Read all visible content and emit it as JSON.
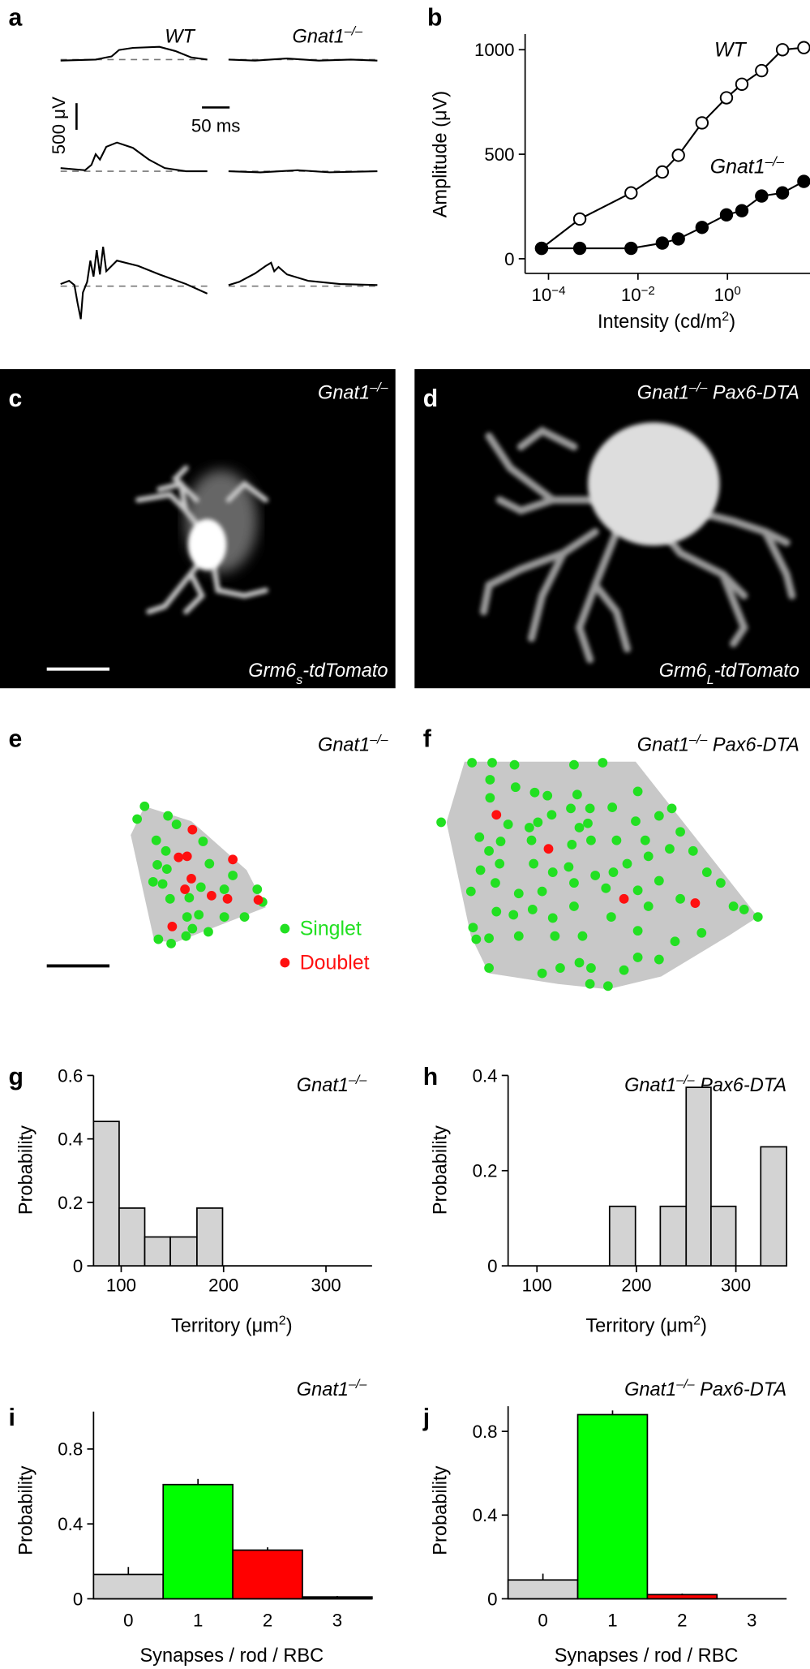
{
  "traces": {
    "label": "a",
    "wt": "WT",
    "mutant": [
      {
        "text": "Gnat1"
      },
      {
        "text": "–/–",
        "style": "sup"
      }
    ],
    "voltage_scale": "500 μV",
    "time_scale": "50 ms"
  },
  "images": [
    {
      "label": "c",
      "genotype": [
        {
          "text": "Gnat1"
        },
        {
          "text": "–/–",
          "style": "sup"
        }
      ],
      "reporter": [
        {
          "text": "Grm6"
        },
        {
          "text": "s",
          "style": "sub"
        },
        {
          "text": "-tdTomato"
        }
      ]
    },
    {
      "label": "d",
      "genotype": [
        {
          "text": "Gnat1"
        },
        {
          "text": "–/–",
          "style": "sup"
        },
        {
          "text": " Pax6-DTA"
        }
      ],
      "reporter": [
        {
          "text": "Grm6"
        },
        {
          "text": "L",
          "style": "sub"
        },
        {
          "text": "-tdTomato"
        }
      ]
    }
  ],
  "territories": [
    {
      "label": "e",
      "genotype": [
        {
          "text": "Gnat1"
        },
        {
          "text": "–/–",
          "style": "sup"
        }
      ]
    },
    {
      "label": "f",
      "genotype": [
        {
          "text": "Gnat1"
        },
        {
          "text": "–/–",
          "style": "sup"
        },
        {
          "text": " Pax6-DTA"
        }
      ]
    }
  ],
  "legend": [
    {
      "name": "Singlet",
      "color": "#22e022"
    },
    {
      "name": "Doublet",
      "color": "#ff1010"
    }
  ],
  "chart_data": [
    {
      "type": "line",
      "label": "b",
      "ylabel": "Amplitude (μV)",
      "xlabel": [
        {
          "text": "Intensity (cd/m"
        },
        {
          "text": "2",
          "style": "sup"
        },
        {
          "text": ")"
        }
      ],
      "xscale": "log",
      "xlim": [
        3e-05,
        70
      ],
      "ylim": [
        -70,
        1075
      ],
      "xticks": [
        {
          "value": 0.0001,
          "label": "10",
          "exp": "−4"
        },
        {
          "value": 0.01,
          "label": "10",
          "exp": "−2"
        },
        {
          "value": 1,
          "label": "10",
          "exp": "0"
        }
      ],
      "yticks": [
        0,
        500,
        1000
      ],
      "x": [
        7e-05,
        0.0005,
        0.007,
        0.035,
        0.08,
        0.27,
        0.95,
        2.1,
        5.8,
        17,
        51
      ],
      "series": [
        {
          "name": "WT",
          "marker": "open",
          "color": "#000000",
          "values": [
            50,
            190,
            315,
            415,
            495,
            650,
            770,
            835,
            900,
            1000,
            1010
          ]
        },
        {
          "name": [
            {
              "text": "Gnat1"
            },
            {
              "text": "–/–",
              "style": "sup"
            }
          ],
          "marker": "filled",
          "color": "#000000",
          "values": [
            50,
            50,
            50,
            75,
            95,
            150,
            210,
            230,
            300,
            315,
            370
          ]
        }
      ]
    },
    {
      "type": "histogram",
      "label": "g",
      "title": [
        {
          "text": "Gnat1"
        },
        {
          "text": "–/–",
          "style": "sup"
        }
      ],
      "ylabel": "Probability",
      "xlabel": [
        {
          "text": "Territory (μm"
        },
        {
          "text": "2",
          "style": "sup"
        },
        {
          "text": ")"
        }
      ],
      "bins": [
        73,
        98,
        123,
        148,
        174,
        199
      ],
      "values": [
        0.455,
        0.182,
        0.091,
        0.091,
        0.182
      ],
      "color": "#d3d3d3",
      "xlim": [
        73,
        345
      ],
      "ylim": [
        0,
        0.6
      ],
      "xticks": [
        100,
        200,
        300
      ],
      "yticks": [
        0,
        0.2,
        0.4,
        0.6
      ]
    },
    {
      "type": "histogram",
      "label": "h",
      "title": [
        {
          "text": "Gnat1"
        },
        {
          "text": "–/–",
          "style": "sup"
        },
        {
          "text": " Pax6-DTA"
        }
      ],
      "ylabel": "Probability",
      "xlabel": [
        {
          "text": "Territory (μm"
        },
        {
          "text": "2",
          "style": "sup"
        },
        {
          "text": ")"
        }
      ],
      "bins": [
        173,
        199,
        224,
        250,
        275,
        300,
        325,
        351
      ],
      "values": [
        0.125,
        0,
        0.125,
        0.375,
        0.125,
        0,
        0.25
      ],
      "color": "#d3d3d3",
      "xlim": [
        71,
        351
      ],
      "ylim": [
        0,
        0.4
      ],
      "xticks": [
        100,
        200,
        300
      ],
      "yticks": [
        0,
        0.2,
        0.4
      ]
    },
    {
      "type": "bar",
      "label": "i",
      "title": [
        {
          "text": "Gnat1"
        },
        {
          "text": "–/–",
          "style": "sup"
        }
      ],
      "ylabel": "Probability",
      "xlabel": "Synapses / rod / RBC",
      "categories": [
        "0",
        "1",
        "2",
        "3"
      ],
      "values": [
        0.13,
        0.61,
        0.26,
        0.01
      ],
      "errors": [
        0.04,
        0.03,
        0.015,
        0.005
      ],
      "colors": [
        "#d3d3d3",
        "#00ff00",
        "#ff0000",
        "#000000"
      ],
      "ylim": [
        0,
        1.0
      ],
      "yticks": [
        0,
        0.4,
        0.8
      ]
    },
    {
      "type": "bar",
      "label": "j",
      "title": [
        {
          "text": "Gnat1"
        },
        {
          "text": "–/–",
          "style": "sup"
        },
        {
          "text": " Pax6-DTA"
        }
      ],
      "ylabel": "Probability",
      "xlabel": "Synapses / rod / RBC",
      "categories": [
        "0",
        "1",
        "2",
        "3"
      ],
      "values": [
        0.09,
        0.88,
        0.02,
        0
      ],
      "errors": [
        0.03,
        0.02,
        0.005,
        0
      ],
      "colors": [
        "#d3d3d3",
        "#00ff00",
        "#ff0000",
        "#000000"
      ],
      "ylim": [
        0,
        0.92
      ],
      "yticks": [
        0,
        0.4,
        0.8
      ]
    }
  ]
}
